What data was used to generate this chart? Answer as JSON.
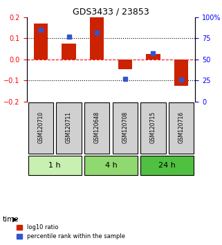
{
  "title": "GDS3433 / 23853",
  "samples": [
    "GSM120710",
    "GSM120711",
    "GSM120648",
    "GSM120708",
    "GSM120715",
    "GSM120716"
  ],
  "log10_ratio": [
    0.17,
    0.075,
    0.2,
    -0.045,
    0.025,
    -0.125
  ],
  "percentile_rank": [
    85,
    77,
    82,
    27,
    57,
    26
  ],
  "time_groups": [
    {
      "label": "1 h",
      "samples": [
        "GSM120710",
        "GSM120711"
      ],
      "color": "#c8f0b0"
    },
    {
      "label": "4 h",
      "samples": [
        "GSM120648",
        "GSM120708"
      ],
      "color": "#90d870"
    },
    {
      "label": "24 h",
      "samples": [
        "GSM120715",
        "GSM120716"
      ],
      "color": "#50c040"
    }
  ],
  "ylim": [
    -0.2,
    0.2
  ],
  "y2lim": [
    0,
    100
  ],
  "yticks": [
    -0.2,
    -0.1,
    0.0,
    0.1,
    0.2
  ],
  "y2ticks": [
    0,
    25,
    50,
    75,
    100
  ],
  "y2ticklabels": [
    "0",
    "25",
    "50",
    "75",
    "100%"
  ],
  "bar_color_red": "#cc2200",
  "bar_color_blue": "#3355cc",
  "label_bg_color": "#d0d0d0",
  "bar_width": 0.5
}
